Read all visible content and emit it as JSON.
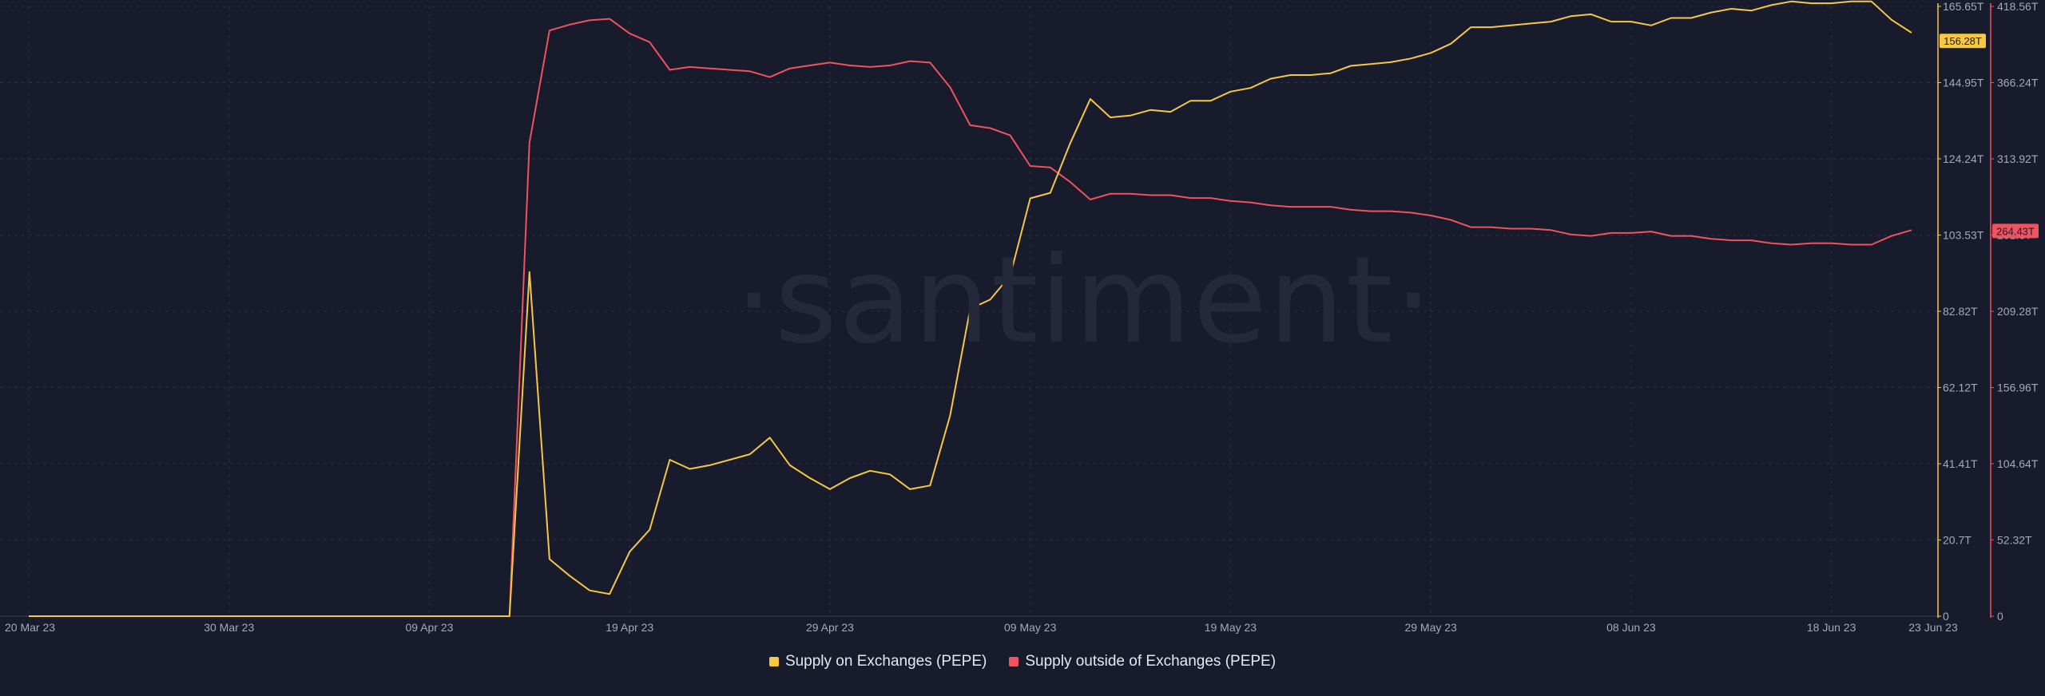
{
  "watermark": "·santiment·",
  "colors": {
    "background": "#171b2b",
    "on_exchanges": "#f6c744",
    "outside_exchanges": "#f0525f",
    "grid": "#2a3043",
    "badge_text_dark": "#171b2b"
  },
  "chart_data": {
    "type": "line",
    "title": "",
    "x_tick_labels": [
      "20 Mar 23",
      "30 Mar 23",
      "09 Apr 23",
      "19 Apr 23",
      "29 Apr 23",
      "09 May 23",
      "19 May 23",
      "29 May 23",
      "08 Jun 23",
      "18 Jun 23",
      "23 Jun 23"
    ],
    "xlim_days": [
      0,
      95
    ],
    "x_tick_days": [
      0,
      10,
      20,
      30,
      40,
      50,
      60,
      70,
      80,
      90,
      95
    ],
    "y_left": {
      "axis": "Supply on Exchanges (PEPE)",
      "range": [
        0,
        165.65
      ],
      "unit": "T",
      "tick_labels": [
        "0",
        "20.7T",
        "41.41T",
        "62.12T",
        "82.82T",
        "103.53T",
        "124.24T",
        "144.95T",
        "165.65T"
      ],
      "ticks": [
        0,
        20.7,
        41.41,
        62.12,
        82.82,
        103.53,
        124.24,
        144.95,
        165.65
      ],
      "current_label": "156.28T",
      "current_value": 156.28
    },
    "y_right": {
      "axis": "Supply outside of Exchanges (PEPE)",
      "range": [
        0,
        418.56
      ],
      "unit": "T",
      "tick_labels": [
        "0",
        "52.32T",
        "104.64T",
        "156.96T",
        "209.28T",
        "261.6T",
        "313.92T",
        "366.24T",
        "418.56T"
      ],
      "ticks": [
        0,
        52.32,
        104.64,
        156.96,
        209.28,
        261.6,
        313.92,
        366.24,
        418.56
      ],
      "current_label": "264.43T",
      "current_value": 264.43
    },
    "grid": true,
    "legend_position": "bottom-center",
    "series": [
      {
        "name": "Supply on Exchanges (PEPE)",
        "axis": "left",
        "x_days": [
          0,
          24,
          25,
          26,
          27,
          28,
          29,
          30,
          31,
          32,
          33,
          34,
          35,
          36,
          37,
          38,
          39,
          40,
          41,
          42,
          43,
          44,
          45,
          46,
          47,
          48,
          49,
          50,
          51,
          52,
          53,
          54,
          55,
          56,
          57,
          58,
          59,
          60,
          61,
          62,
          63,
          64,
          65,
          66,
          67,
          68,
          69,
          70,
          71,
          72,
          73,
          74,
          75,
          76,
          77,
          78,
          79,
          80,
          81,
          82,
          83,
          84,
          85,
          86,
          87,
          88,
          89,
          90,
          91,
          92,
          93,
          94
        ],
        "values": [
          0,
          0,
          93.5,
          15.5,
          11.0,
          7.0,
          6.0,
          17.5,
          23.5,
          42.5,
          40.0,
          41.0,
          42.5,
          44.0,
          48.5,
          41.0,
          37.5,
          34.5,
          37.5,
          39.5,
          38.5,
          34.5,
          35.5,
          54.5,
          83.5,
          86.0,
          92.5,
          113.5,
          115.0,
          128.5,
          140.5,
          135.5,
          136.0,
          137.5,
          137.0,
          140.0,
          140.0,
          142.5,
          143.5,
          146.0,
          147.0,
          147.0,
          147.5,
          149.5,
          150.0,
          150.5,
          151.5,
          153.0,
          155.5,
          160.0,
          160.0,
          160.5,
          161.0,
          161.5,
          163.0,
          163.5,
          161.5,
          161.5,
          160.5,
          162.5,
          162.5,
          164.0,
          165.0,
          164.5,
          166.0,
          167.0,
          166.5,
          166.5,
          167.0,
          167.0,
          162.0,
          158.5
        ]
      },
      {
        "name": "Supply outside of Exchanges (PEPE)",
        "axis": "right",
        "x_days": [
          0,
          24,
          25,
          26,
          27,
          28,
          29,
          30,
          31,
          32,
          33,
          34,
          35,
          36,
          37,
          38,
          39,
          40,
          41,
          42,
          43,
          44,
          45,
          46,
          47,
          48,
          49,
          50,
          51,
          52,
          53,
          54,
          55,
          56,
          57,
          58,
          59,
          60,
          61,
          62,
          63,
          64,
          65,
          66,
          67,
          68,
          69,
          70,
          71,
          72,
          73,
          74,
          75,
          76,
          77,
          78,
          79,
          80,
          81,
          82,
          83,
          84,
          85,
          86,
          87,
          88,
          89,
          90,
          91,
          92,
          93,
          94
        ],
        "values": [
          0,
          0,
          325,
          402,
          406,
          409,
          410,
          400,
          394,
          375,
          377,
          376,
          375,
          374,
          370,
          376,
          378,
          380,
          378,
          377,
          378,
          381,
          380,
          363,
          337,
          335,
          330,
          309,
          308,
          298,
          286,
          290,
          290,
          289,
          289,
          287,
          287,
          285,
          284,
          282,
          281,
          281,
          281,
          279,
          278,
          278,
          277,
          275,
          272,
          267,
          267,
          266,
          266,
          265,
          262,
          261,
          263,
          263,
          264,
          261,
          261,
          259,
          258,
          258,
          256,
          255,
          256,
          256,
          255,
          255,
          261,
          265
        ]
      }
    ]
  },
  "legend": {
    "items": [
      {
        "label": "Supply on Exchanges (PEPE)"
      },
      {
        "label": "Supply outside of Exchanges (PEPE)"
      }
    ]
  }
}
